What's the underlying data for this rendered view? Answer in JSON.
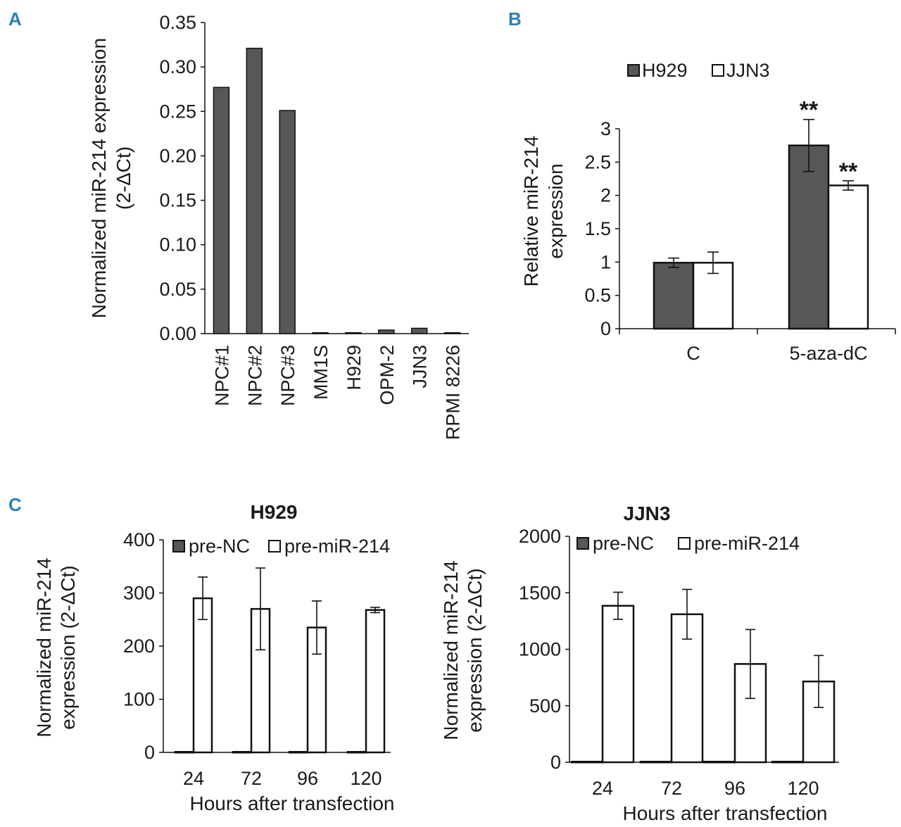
{
  "colors": {
    "dark_bar": "#575757",
    "light_bar": "#ffffff",
    "stroke": "#111111",
    "panel_letter": "#2a7fb3"
  },
  "chart_data": [
    {
      "panel": "A",
      "type": "bar",
      "title": "",
      "ylabel_lines": [
        "Normalized miR-214 expression",
        "(2-ΔCt)"
      ],
      "xlabel": "",
      "ylim": [
        0,
        0.35
      ],
      "yticks": [
        "0.00",
        "0.05",
        "0.10",
        "0.15",
        "0.20",
        "0.25",
        "0.30",
        "0.35"
      ],
      "grid": false,
      "categories": [
        "NPC#1",
        "NPC#2",
        "NPC#3",
        "MM1S",
        "H929",
        "OPM-2",
        "JJN3",
        "RPMI 8226"
      ],
      "values": [
        0.277,
        0.321,
        0.251,
        0.001,
        0.001,
        0.004,
        0.006,
        0.001
      ]
    },
    {
      "panel": "B",
      "type": "bar",
      "title": "",
      "ylabel_lines": [
        "Relative miR-214",
        "expression"
      ],
      "xlabel": "",
      "ylim": [
        0,
        3
      ],
      "yticks": [
        "0",
        "0.5",
        "1",
        "1.5",
        "2",
        "2.5",
        "3"
      ],
      "grid": false,
      "legend_position": "top",
      "categories": [
        "C",
        "5-aza-dC"
      ],
      "series": [
        {
          "name": "H929",
          "values": [
            0.99,
            2.75
          ],
          "errors": [
            0.07,
            0.39
          ]
        },
        {
          "name": "JJN3",
          "values": [
            0.99,
            2.15
          ],
          "errors": [
            0.16,
            0.07
          ]
        }
      ],
      "annotations": [
        {
          "category": "5-aza-dC",
          "series": "H929",
          "text": "**"
        },
        {
          "category": "5-aza-dC",
          "series": "JJN3",
          "text": "**"
        }
      ]
    },
    {
      "panel": "C",
      "type": "bar",
      "title": "H929",
      "ylabel_lines": [
        "Normalized miR-214",
        "expression (2-ΔCt)"
      ],
      "xlabel": "Hours after transfection",
      "ylim": [
        0,
        400
      ],
      "yticks": [
        "0",
        "100",
        "200",
        "300",
        "400"
      ],
      "grid": false,
      "legend_position": "top",
      "categories": [
        "24",
        "72",
        "96",
        "120"
      ],
      "series": [
        {
          "name": "pre-NC",
          "values": [
            1,
            1,
            1,
            1
          ],
          "errors": [
            0,
            0,
            0,
            0
          ]
        },
        {
          "name": "pre-miR-214",
          "values": [
            290,
            270,
            235,
            268
          ],
          "errors": [
            40,
            77,
            50,
            5
          ]
        }
      ]
    },
    {
      "panel": "",
      "type": "bar",
      "title": "JJN3",
      "ylabel_lines": [
        "Normalized miR-214",
        "expression (2-ΔCt)"
      ],
      "xlabel": "Hours after transfection",
      "ylim": [
        0,
        2000
      ],
      "yticks": [
        "0",
        "500",
        "1000",
        "1500",
        "2000"
      ],
      "grid": false,
      "legend_position": "top",
      "categories": [
        "24",
        "72",
        "96",
        "120"
      ],
      "series": [
        {
          "name": "pre-NC",
          "values": [
            5,
            5,
            5,
            5
          ],
          "errors": [
            0,
            0,
            0,
            0
          ]
        },
        {
          "name": "pre-miR-214",
          "values": [
            1385,
            1310,
            870,
            715
          ],
          "errors": [
            120,
            220,
            305,
            230
          ]
        }
      ]
    }
  ]
}
